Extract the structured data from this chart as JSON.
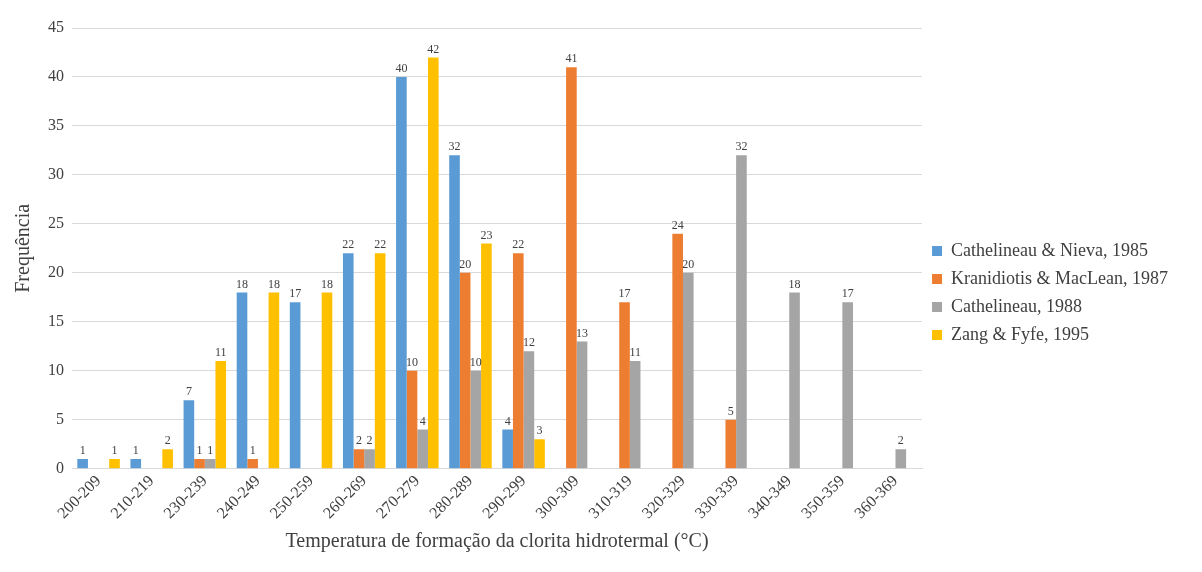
{
  "chart_data": {
    "type": "bar",
    "xlabel": "Temperatura de formação da clorita hidrotermal (°C)",
    "ylabel": "Frequência",
    "categories": [
      "200-209",
      "210-219",
      "230-239",
      "240-249",
      "250-259",
      "260-269",
      "270-279",
      "280-289",
      "290-299",
      "300-309",
      "310-319",
      "320-329",
      "330-339",
      "340-349",
      "350-359",
      "360-369"
    ],
    "series": [
      {
        "name": "Cathelineau & Nieva, 1985",
        "color": "#5b9bd5",
        "values": [
          1,
          1,
          7,
          18,
          17,
          22,
          40,
          32,
          4,
          null,
          null,
          null,
          null,
          null,
          null,
          null
        ]
      },
      {
        "name": "Kranidiotis & MacLean, 1987",
        "color": "#ed7d31",
        "values": [
          null,
          null,
          1,
          1,
          null,
          2,
          10,
          20,
          22,
          41,
          17,
          24,
          5,
          null,
          null,
          null
        ]
      },
      {
        "name": "Cathelineau, 1988",
        "color": "#a5a5a5",
        "values": [
          null,
          null,
          1,
          null,
          null,
          2,
          4,
          10,
          12,
          13,
          11,
          20,
          32,
          18,
          17,
          2
        ]
      },
      {
        "name": "Zang & Fyfe, 1995",
        "color": "#ffc000",
        "values": [
          1,
          2,
          11,
          18,
          18,
          22,
          42,
          23,
          3,
          null,
          null,
          null,
          null,
          null,
          null,
          null
        ]
      }
    ],
    "ylim": [
      0,
      45
    ],
    "yticks": [
      0,
      5,
      10,
      15,
      20,
      25,
      30,
      35,
      40,
      45
    ],
    "grid": "y",
    "legend": "right",
    "data_labels": true
  }
}
